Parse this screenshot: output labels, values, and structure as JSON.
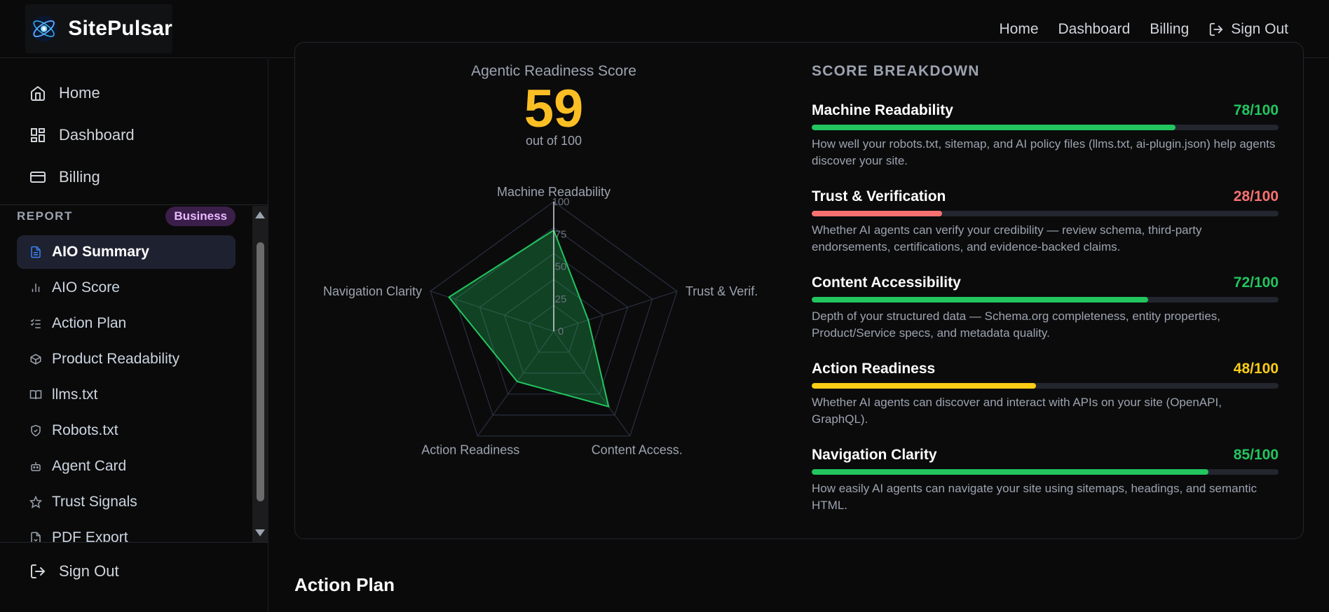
{
  "header": {
    "brand": "SitePulsar",
    "nav": [
      {
        "label": "Home"
      },
      {
        "label": "Dashboard"
      },
      {
        "label": "Billing"
      },
      {
        "label": "Sign Out",
        "icon": "sign-out-icon"
      }
    ]
  },
  "sidebar": {
    "main": [
      {
        "label": "Home",
        "icon": "home-icon"
      },
      {
        "label": "Dashboard",
        "icon": "dashboard-icon"
      },
      {
        "label": "Billing",
        "icon": "card-icon"
      }
    ],
    "report_label": "REPORT",
    "plan_badge": "Business",
    "report_items": [
      {
        "label": "AIO Summary",
        "icon": "document-icon",
        "active": true
      },
      {
        "label": "AIO Score",
        "icon": "bar-chart-icon"
      },
      {
        "label": "Action Plan",
        "icon": "checklist-icon"
      },
      {
        "label": "Product Readability",
        "icon": "box-icon"
      },
      {
        "label": "llms.txt",
        "icon": "book-icon"
      },
      {
        "label": "Robots.txt",
        "icon": "shield-icon"
      },
      {
        "label": "Agent Card",
        "icon": "bot-icon"
      },
      {
        "label": "Trust Signals",
        "icon": "star-icon"
      },
      {
        "label": "PDF Export",
        "icon": "file-download-icon"
      }
    ],
    "sign_out": "Sign Out"
  },
  "score": {
    "title": "Agentic Readiness Score",
    "value": "59",
    "subtitle": "out of 100"
  },
  "chart_data": {
    "type": "radar",
    "axes": [
      "Machine Readability",
      "Trust & Verif.",
      "Content Access.",
      "Action Readiness",
      "Navigation Clarity"
    ],
    "values": [
      78,
      28,
      72,
      48,
      85
    ],
    "ticks": [
      "0",
      "25",
      "50",
      "75",
      "100"
    ],
    "range": [
      0,
      100
    ],
    "grid_levels": [
      20,
      40,
      60,
      80,
      100
    ],
    "fill_color": "#22c55e",
    "grid_color": "#2b3040"
  },
  "breakdown": {
    "title": "SCORE BREAKDOWN",
    "metrics": [
      {
        "name": "Machine Readability",
        "score": "78/100",
        "value": 78,
        "color": "#22c55e",
        "desc": "How well your robots.txt, sitemap, and AI policy files (llms.txt, ai-plugin.json) help agents discover your site."
      },
      {
        "name": "Trust & Verification",
        "score": "28/100",
        "value": 28,
        "color": "#f87171",
        "desc": "Whether AI agents can verify your credibility — review schema, third-party endorsements, certifications, and evidence-backed claims."
      },
      {
        "name": "Content Accessibility",
        "score": "72/100",
        "value": 72,
        "color": "#22c55e",
        "desc": "Depth of your structured data — Schema.org completeness, entity properties, Product/Service specs, and metadata quality."
      },
      {
        "name": "Action Readiness",
        "score": "48/100",
        "value": 48,
        "color": "#facc15",
        "desc": "Whether AI agents can discover and interact with APIs on your site (OpenAPI, GraphQL)."
      },
      {
        "name": "Navigation Clarity",
        "score": "85/100",
        "value": 85,
        "color": "#22c55e",
        "desc": "How easily AI agents can navigate your site using sitemaps, headings, and semantic HTML."
      }
    ]
  },
  "next_section": "Action Plan"
}
